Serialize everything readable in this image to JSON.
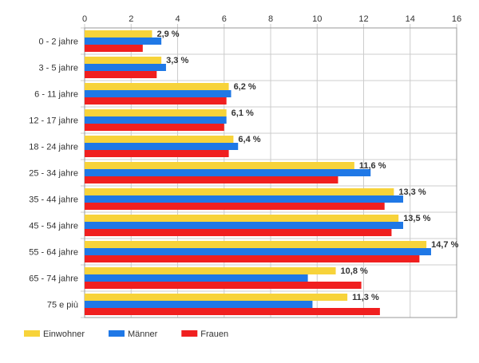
{
  "chart_data": {
    "type": "bar",
    "orientation": "horizontal",
    "title": "",
    "xlabel": "",
    "ylabel": "",
    "xlim": [
      0,
      16
    ],
    "x_ticks": [
      0,
      2,
      4,
      6,
      8,
      10,
      12,
      14,
      16
    ],
    "grid": true,
    "legend_position": "bottom-left",
    "categories": [
      "0 - 2 jahre",
      "3 - 5 jahre",
      "6 - 11 jahre",
      "12 - 17 jahre",
      "18 - 24 jahre",
      "25 - 34 jahre",
      "35 - 44 jahre",
      "45 - 54 jahre",
      "55 - 64 jahre",
      "65 - 74 jahre",
      "75 e più"
    ],
    "series": [
      {
        "name": "Einwohner",
        "color": "#f7d33a",
        "values": [
          2.9,
          3.3,
          6.2,
          6.1,
          6.4,
          11.6,
          13.3,
          13.5,
          14.7,
          10.8,
          11.3
        ],
        "labels": [
          "2,9 %",
          "3,3 %",
          "6,2 %",
          "6,1 %",
          "6,4 %",
          "11,6 %",
          "13,3 %",
          "13,5 %",
          "14,7 %",
          "10,8 %",
          "11,3 %"
        ]
      },
      {
        "name": "Männer",
        "color": "#1f78e6",
        "values": [
          3.3,
          3.5,
          6.3,
          6.1,
          6.6,
          12.3,
          13.7,
          13.7,
          14.9,
          9.6,
          9.8
        ]
      },
      {
        "name": "Frauen",
        "color": "#f01f1f",
        "values": [
          2.5,
          3.1,
          6.1,
          6.0,
          6.2,
          10.9,
          12.9,
          13.2,
          14.4,
          11.9,
          12.7
        ]
      }
    ]
  }
}
